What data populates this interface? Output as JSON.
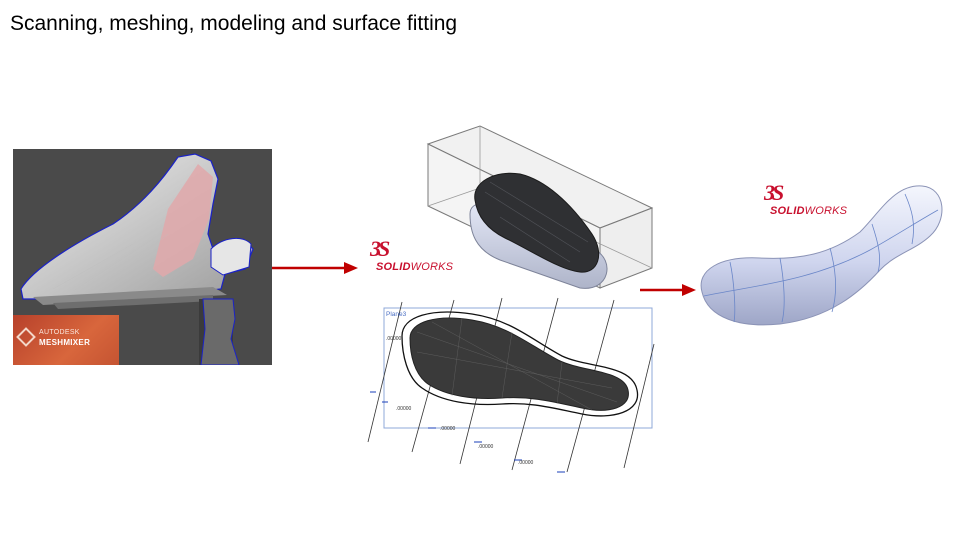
{
  "slide": {
    "title": "Scanning, meshing, modeling and surface fitting"
  },
  "meshmixer": {
    "brand_top": "AUTODESK",
    "brand_main": "MESHMIXER"
  },
  "solidworks": {
    "logo_mark": "3S",
    "word_bold": "SOLID",
    "word_regular": "WORKS"
  },
  "sketch": {
    "plane_label": "Plane3",
    "dimensions": [
      ".00000",
      ".00000",
      ".00000",
      ".00000",
      ".00000",
      ".00000"
    ]
  },
  "colors": {
    "arrow": "#c00000",
    "solidworks_red": "#c8102e",
    "meshmixer_bg": "#4a4a4a",
    "surface": "#d7dcf0"
  },
  "icons": [
    "right-arrow-icon",
    "solidworks-logo-icon",
    "meshmixer-logo-icon"
  ]
}
